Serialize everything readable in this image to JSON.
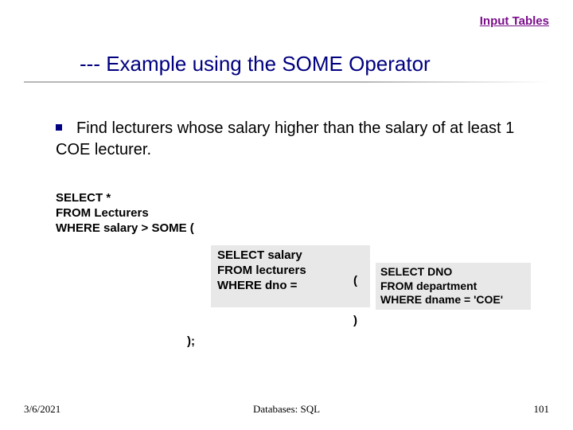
{
  "link": {
    "text": "Input Tables",
    "color": "#7a0e8a"
  },
  "title": {
    "text": "--- Example using the SOME Operator",
    "color": "#000080",
    "fontsize": 26
  },
  "bullet": {
    "color": "#000080"
  },
  "body": {
    "text": "Find lecturers whose salary higher than the salary of at least 1 COE lecturer.",
    "fontsize": 20
  },
  "sql": {
    "outer": {
      "line1": "SELECT *",
      "line2": "FROM Lecturers",
      "line3": "WHERE salary > SOME ("
    },
    "mid": {
      "line1": "SELECT salary",
      "line2": "FROM lecturers",
      "line3": "WHERE dno =",
      "bg": "#e8e8e8"
    },
    "inner": {
      "line1": "SELECT DNO",
      "line2": "FROM department",
      "line3": "WHERE dname = 'COE'",
      "bg": "#e8e8e8"
    },
    "paren_open": "(",
    "paren_close_inner": ")",
    "paren_close_outer": ");",
    "font": "Comic Sans MS",
    "fontsize": 15
  },
  "footer": {
    "date": "3/6/2021",
    "center": "Databases: SQL",
    "page": "101",
    "fontsize": 13
  }
}
